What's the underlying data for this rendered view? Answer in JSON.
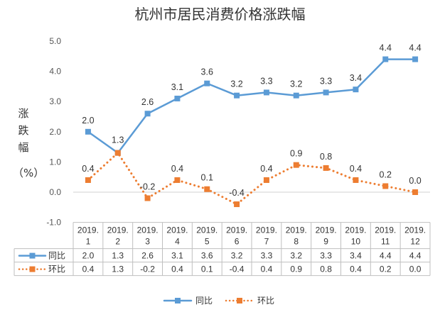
{
  "chart_data": {
    "type": "line",
    "title": "杭州市居民消费价格涨跌幅",
    "ylabel": "涨跌幅",
    "yunit": "（%）",
    "ylim": [
      -1.0,
      5.0
    ],
    "yticks": [
      "5.0",
      "4.0",
      "3.0",
      "2.0",
      "1.0",
      "0.0",
      "-1.0"
    ],
    "categories": [
      [
        "2019.",
        "1"
      ],
      [
        "2019.",
        "2"
      ],
      [
        "2019.",
        "3"
      ],
      [
        "2019.",
        "4"
      ],
      [
        "2019.",
        "5"
      ],
      [
        "2019.",
        "6"
      ],
      [
        "2019.",
        "7"
      ],
      [
        "2019.",
        "8"
      ],
      [
        "2019.",
        "9"
      ],
      [
        "2019.",
        "10"
      ],
      [
        "2019.",
        "11"
      ],
      [
        "2019.",
        "12"
      ]
    ],
    "series": [
      {
        "name": "同比",
        "color": "#5B9BD5",
        "line": "solid",
        "marker": "square",
        "values": [
          2.0,
          1.3,
          2.6,
          3.1,
          3.6,
          3.2,
          3.3,
          3.2,
          3.3,
          3.4,
          4.4,
          4.4
        ]
      },
      {
        "name": "环比",
        "color": "#ED7D31",
        "line": "dotted",
        "marker": "square",
        "values": [
          0.4,
          1.3,
          -0.2,
          0.4,
          0.1,
          -0.4,
          0.4,
          0.9,
          0.8,
          0.4,
          0.2,
          0.0
        ]
      }
    ],
    "grid": false,
    "legend": "bottom",
    "data_table": true
  }
}
